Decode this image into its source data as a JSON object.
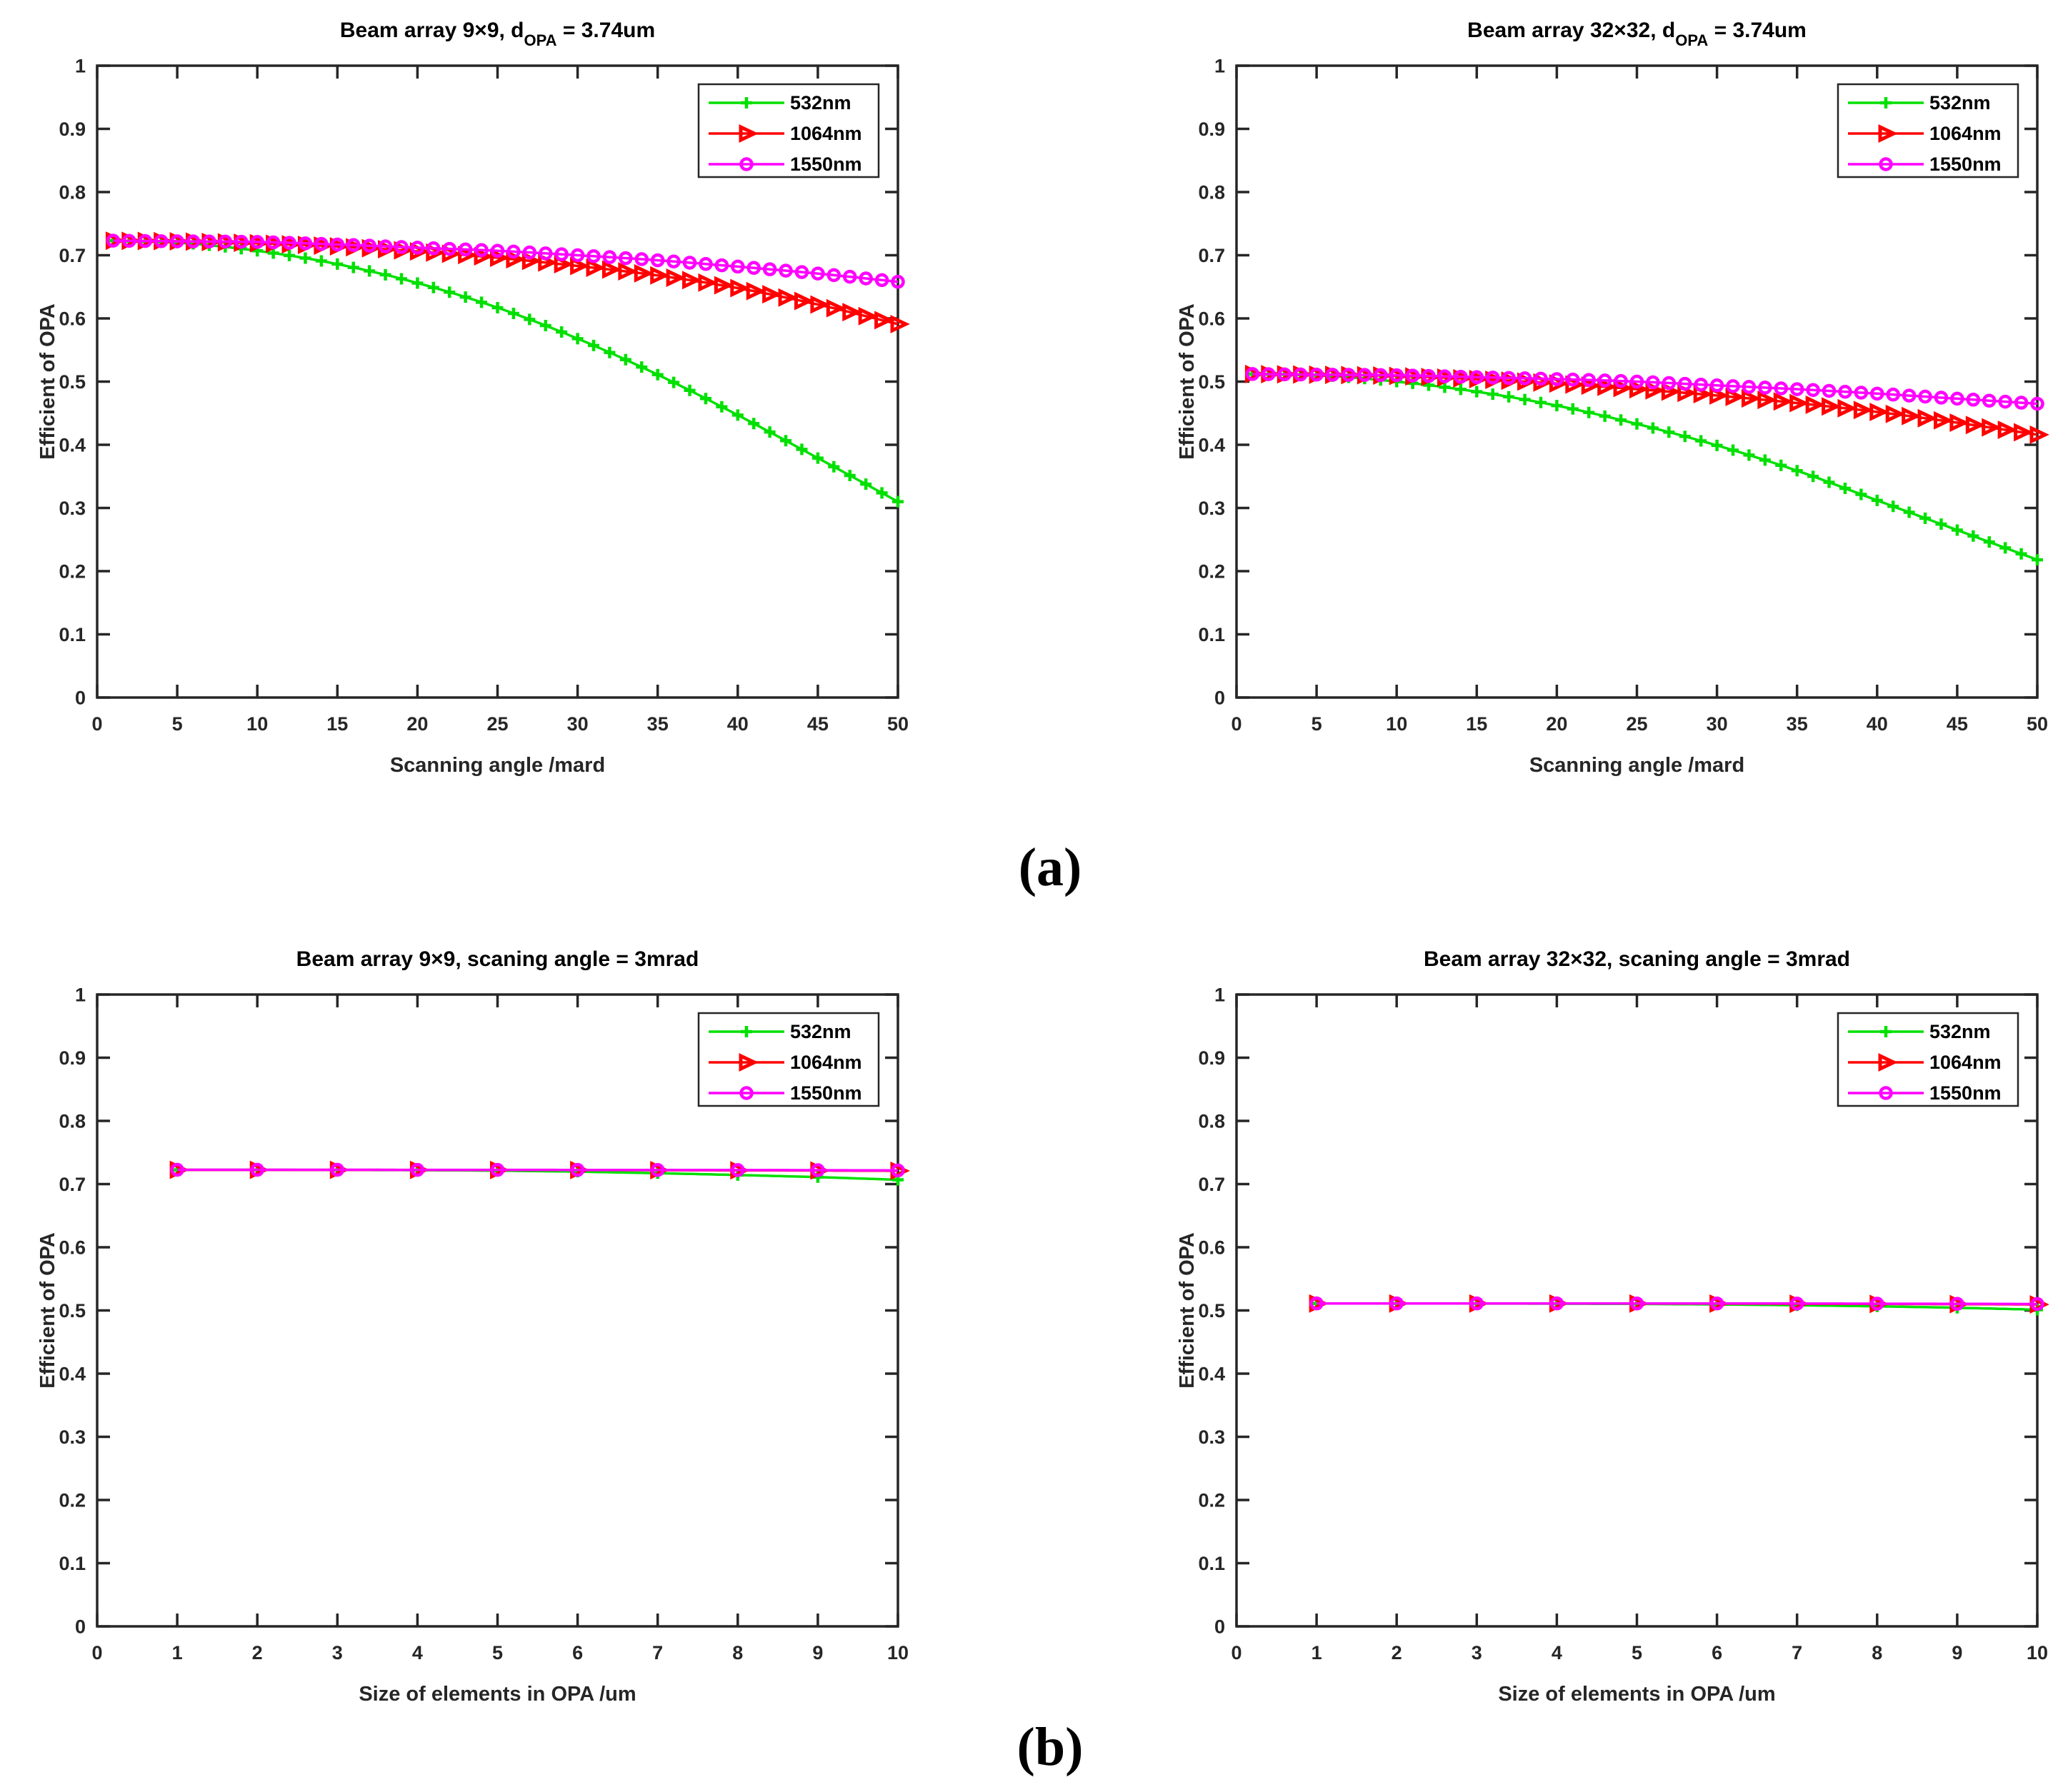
{
  "page": {
    "background": "#ffffff"
  },
  "captions": {
    "a": "(a)",
    "b": "(b)"
  },
  "colors": {
    "axis": "#262626",
    "series_532": "#00e000",
    "series_1064": "#ff0000",
    "series_1550": "#ff00ff"
  },
  "chart_data": [
    {
      "type": "line",
      "title_parts": [
        [
          "Beam array 9×9,  d",
          ""
        ],
        [
          "OPA",
          "sub"
        ],
        [
          " = 3.74um",
          ""
        ]
      ],
      "xlabel": "Scanning angle /mard",
      "ylabel": "Efficient of OPA",
      "xlim": [
        0,
        50
      ],
      "ylim": [
        0,
        1
      ],
      "xticks": [
        0,
        5,
        10,
        15,
        20,
        25,
        30,
        35,
        40,
        45,
        50
      ],
      "xtick_labels": [
        "0",
        "5",
        "10",
        "15",
        "20",
        "25",
        "30",
        "35",
        "40",
        "45",
        "50"
      ],
      "yticks": [
        0,
        0.1,
        0.2,
        0.3,
        0.4,
        0.5,
        0.6,
        0.7,
        0.8,
        0.9,
        1
      ],
      "ytick_labels": [
        "0",
        "0.1",
        "0.2",
        "0.3",
        "0.4",
        "0.5",
        "0.6",
        "0.7",
        "0.8",
        "0.9",
        "1"
      ],
      "grid": false,
      "legend_position": "top-right",
      "marker_step": 1,
      "series": [
        {
          "name": "532nm",
          "color_key": "series_532",
          "marker": "plus",
          "x": [
            1,
            5,
            10,
            15,
            20,
            25,
            30,
            35,
            40,
            45,
            50
          ],
          "y": [
            0.723,
            0.72,
            0.707,
            0.686,
            0.656,
            0.617,
            0.568,
            0.511,
            0.447,
            0.379,
            0.31
          ]
        },
        {
          "name": "1064nm",
          "color_key": "series_1064",
          "marker": "triangle-right",
          "x": [
            1,
            5,
            10,
            15,
            20,
            25,
            30,
            35,
            40,
            45,
            50
          ],
          "y": [
            0.723,
            0.722,
            0.719,
            0.714,
            0.706,
            0.696,
            0.683,
            0.668,
            0.648,
            0.622,
            0.591
          ]
        },
        {
          "name": "1550nm",
          "color_key": "series_1550",
          "marker": "circle",
          "x": [
            1,
            5,
            10,
            15,
            20,
            25,
            30,
            35,
            40,
            45,
            50
          ],
          "y": [
            0.723,
            0.722,
            0.721,
            0.717,
            0.712,
            0.707,
            0.7,
            0.692,
            0.682,
            0.671,
            0.658
          ]
        }
      ]
    },
    {
      "type": "line",
      "title_parts": [
        [
          "Beam array 32×32,  d",
          ""
        ],
        [
          "OPA",
          "sub"
        ],
        [
          " = 3.74um",
          ""
        ]
      ],
      "xlabel": "Scanning angle /mard",
      "ylabel": "Efficient of OPA",
      "xlim": [
        0,
        50
      ],
      "ylim": [
        0,
        1
      ],
      "xticks": [
        0,
        5,
        10,
        15,
        20,
        25,
        30,
        35,
        40,
        45,
        50
      ],
      "xtick_labels": [
        "0",
        "5",
        "10",
        "15",
        "20",
        "25",
        "30",
        "35",
        "40",
        "45",
        "50"
      ],
      "yticks": [
        0,
        0.1,
        0.2,
        0.3,
        0.4,
        0.5,
        0.6,
        0.7,
        0.8,
        0.9,
        1
      ],
      "ytick_labels": [
        "0",
        "0.1",
        "0.2",
        "0.3",
        "0.4",
        "0.5",
        "0.6",
        "0.7",
        "0.8",
        "0.9",
        "1"
      ],
      "grid": false,
      "legend_position": "top-right",
      "marker_step": 1,
      "series": [
        {
          "name": "532nm",
          "color_key": "series_532",
          "marker": "plus",
          "x": [
            1,
            5,
            10,
            15,
            20,
            25,
            30,
            35,
            40,
            45,
            50
          ],
          "y": [
            0.512,
            0.51,
            0.5,
            0.484,
            0.462,
            0.433,
            0.399,
            0.359,
            0.312,
            0.265,
            0.218
          ]
        },
        {
          "name": "1064nm",
          "color_key": "series_1064",
          "marker": "triangle-right",
          "x": [
            1,
            5,
            10,
            15,
            20,
            25,
            30,
            35,
            40,
            45,
            50
          ],
          "y": [
            0.512,
            0.511,
            0.509,
            0.504,
            0.497,
            0.488,
            0.478,
            0.466,
            0.452,
            0.435,
            0.416
          ]
        },
        {
          "name": "1550nm",
          "color_key": "series_1550",
          "marker": "circle",
          "x": [
            1,
            5,
            10,
            15,
            20,
            25,
            30,
            35,
            40,
            45,
            50
          ],
          "y": [
            0.512,
            0.511,
            0.51,
            0.507,
            0.504,
            0.5,
            0.494,
            0.488,
            0.481,
            0.473,
            0.465
          ]
        }
      ]
    },
    {
      "type": "line",
      "title_parts": [
        [
          "Beam array 9×9,  scaning angle = 3mrad",
          ""
        ]
      ],
      "xlabel": "Size of elements in OPA /um",
      "ylabel": "Efficient of OPA",
      "xlim": [
        0,
        10
      ],
      "ylim": [
        0,
        1
      ],
      "xticks": [
        0,
        1,
        2,
        3,
        4,
        5,
        6,
        7,
        8,
        9,
        10
      ],
      "xtick_labels": [
        "0",
        "1",
        "2",
        "3",
        "4",
        "5",
        "6",
        "7",
        "8",
        "9",
        "10"
      ],
      "yticks": [
        0,
        0.1,
        0.2,
        0.3,
        0.4,
        0.5,
        0.6,
        0.7,
        0.8,
        0.9,
        1
      ],
      "ytick_labels": [
        "0",
        "0.1",
        "0.2",
        "0.3",
        "0.4",
        "0.5",
        "0.6",
        "0.7",
        "0.8",
        "0.9",
        "1"
      ],
      "grid": false,
      "legend_position": "top-right",
      "marker_step": 1,
      "series": [
        {
          "name": "532nm",
          "color_key": "series_532",
          "marker": "plus",
          "x": [
            1,
            2,
            3,
            4,
            5,
            6,
            7,
            8,
            9,
            10
          ],
          "y": [
            0.7225,
            0.7225,
            0.7223,
            0.722,
            0.7212,
            0.7196,
            0.7172,
            0.7143,
            0.711,
            0.7068
          ]
        },
        {
          "name": "1064nm",
          "color_key": "series_1064",
          "marker": "triangle-right",
          "x": [
            1,
            2,
            3,
            4,
            5,
            6,
            7,
            8,
            9,
            10
          ],
          "y": [
            0.7225,
            0.7225,
            0.7225,
            0.7224,
            0.7223,
            0.7222,
            0.722,
            0.7218,
            0.7215,
            0.721
          ]
        },
        {
          "name": "1550nm",
          "color_key": "series_1550",
          "marker": "circle",
          "x": [
            1,
            2,
            3,
            4,
            5,
            6,
            7,
            8,
            9,
            10
          ],
          "y": [
            0.7226,
            0.7226,
            0.7226,
            0.7225,
            0.7225,
            0.7224,
            0.7223,
            0.7222,
            0.722,
            0.7216
          ]
        }
      ]
    },
    {
      "type": "line",
      "title_parts": [
        [
          "Beam array 32×32,  scaning angle = 3mrad",
          ""
        ]
      ],
      "xlabel": "Size of elements in OPA /um",
      "ylabel": "Efficient of OPA",
      "xlim": [
        0,
        10
      ],
      "ylim": [
        0,
        1
      ],
      "xticks": [
        0,
        1,
        2,
        3,
        4,
        5,
        6,
        7,
        8,
        9,
        10
      ],
      "xtick_labels": [
        "0",
        "1",
        "2",
        "3",
        "4",
        "5",
        "6",
        "7",
        "8",
        "9",
        "10"
      ],
      "yticks": [
        0,
        0.1,
        0.2,
        0.3,
        0.4,
        0.5,
        0.6,
        0.7,
        0.8,
        0.9,
        1
      ],
      "ytick_labels": [
        "0",
        "0.1",
        "0.2",
        "0.3",
        "0.4",
        "0.5",
        "0.6",
        "0.7",
        "0.8",
        "0.9",
        "1"
      ],
      "grid": false,
      "legend_position": "top-right",
      "marker_step": 1,
      "series": [
        {
          "name": "532nm",
          "color_key": "series_532",
          "marker": "plus",
          "x": [
            1,
            2,
            3,
            4,
            5,
            6,
            7,
            8,
            9,
            10
          ],
          "y": [
            0.511,
            0.511,
            0.5109,
            0.5107,
            0.5103,
            0.5095,
            0.5082,
            0.5065,
            0.5042,
            0.5012
          ]
        },
        {
          "name": "1064nm",
          "color_key": "series_1064",
          "marker": "triangle-right",
          "x": [
            1,
            2,
            3,
            4,
            5,
            6,
            7,
            8,
            9,
            10
          ],
          "y": [
            0.511,
            0.511,
            0.511,
            0.511,
            0.5109,
            0.5108,
            0.5106,
            0.5103,
            0.51,
            0.5095
          ]
        },
        {
          "name": "1550nm",
          "color_key": "series_1550",
          "marker": "circle",
          "x": [
            1,
            2,
            3,
            4,
            5,
            6,
            7,
            8,
            9,
            10
          ],
          "y": [
            0.5111,
            0.5111,
            0.5111,
            0.5111,
            0.511,
            0.511,
            0.5109,
            0.5107,
            0.5105,
            0.5101
          ]
        }
      ]
    }
  ]
}
